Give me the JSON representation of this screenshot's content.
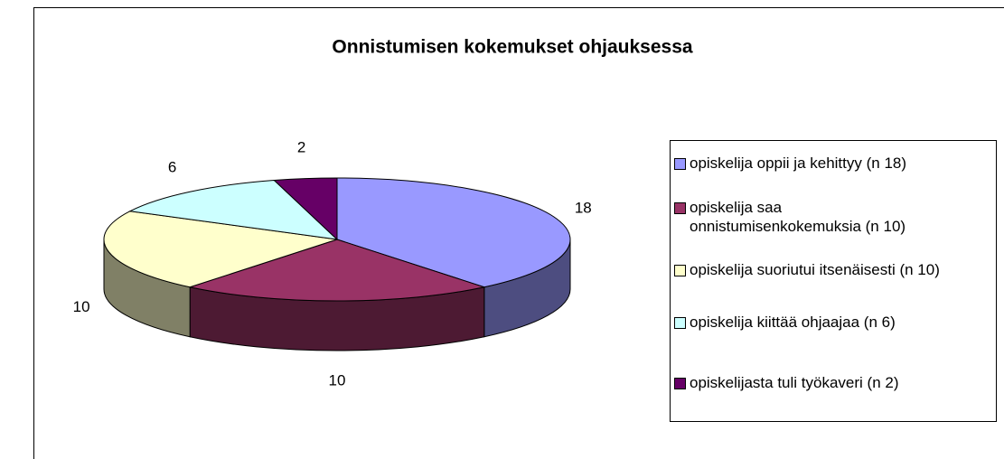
{
  "chart_data": {
    "type": "pie3d",
    "title": "Onnistumisen kokemukset ohjauksessa",
    "categories": [
      "opiskelija oppii ja kehittyy (n 18)",
      "opiskelija saa onnistumisenkokemuksia (n 10)",
      "opiskelija suoriutui itsenäisesti (n 10)",
      "opiskelija kiittää ohjaajaa (n 6)",
      "opiskelijasta tuli työkaveri (n 2)"
    ],
    "values": [
      18,
      10,
      10,
      6,
      2
    ],
    "colors": [
      "#9999ff",
      "#993366",
      "#ffffcc",
      "#ccffff",
      "#660066"
    ],
    "legend": "right"
  }
}
